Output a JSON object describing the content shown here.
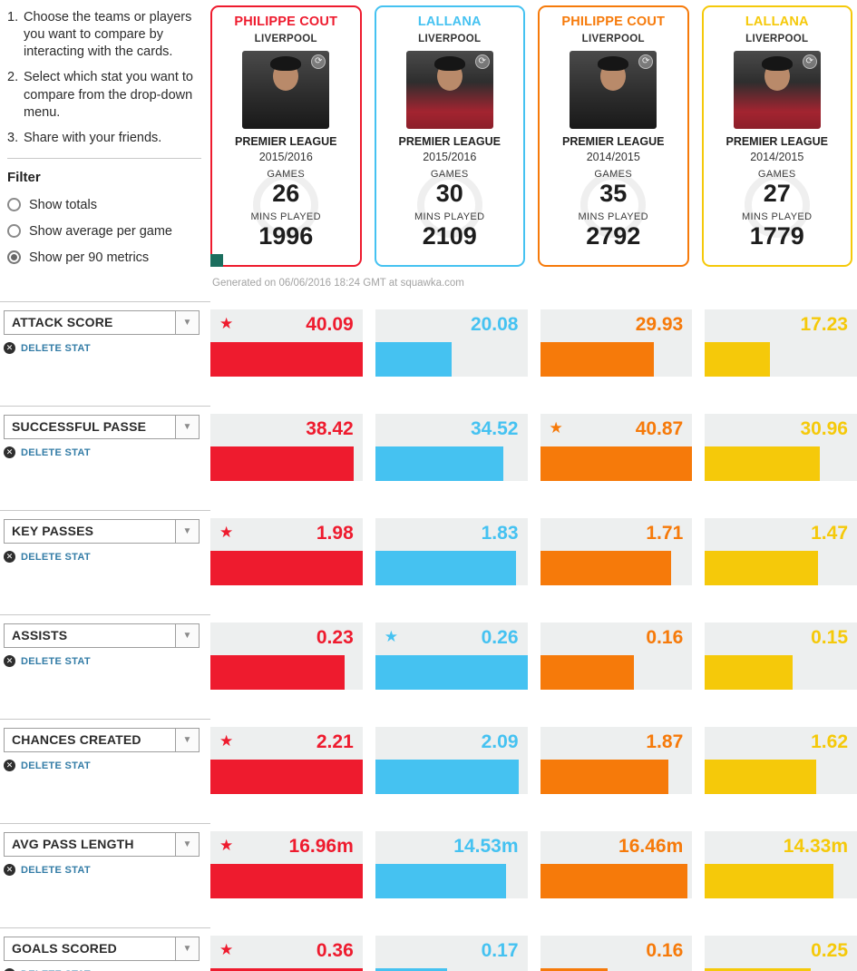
{
  "instructions": [
    {
      "num": "1.",
      "text": "Choose the teams or players you want to compare by interacting with the cards."
    },
    {
      "num": "2.",
      "text": "Select which stat you want to compare from the drop-down menu."
    },
    {
      "num": "3.",
      "text": "Share with your friends."
    }
  ],
  "filter": {
    "title": "Filter",
    "options": [
      {
        "label": "Show totals",
        "selected": false
      },
      {
        "label": "Show average per game",
        "selected": false
      },
      {
        "label": "Show per 90 metrics",
        "selected": true
      }
    ]
  },
  "labels": {
    "games": "GAMES",
    "mins_played": "MINS PLAYED",
    "delete_stat": "DELETE STAT"
  },
  "generated_note": "Generated on 06/06/2016 18:24 GMT at squawka.com",
  "players": [
    {
      "name": "PHILIPPE COUT",
      "team": "LIVERPOOL",
      "league": "PREMIER LEAGUE",
      "season": "2015/2016",
      "games": "26",
      "mins": "1996",
      "color": "#ee1b2e",
      "kit": "dark"
    },
    {
      "name": "LALLANA",
      "team": "LIVERPOOL",
      "league": "PREMIER LEAGUE",
      "season": "2015/2016",
      "games": "30",
      "mins": "2109",
      "color": "#45c2f1",
      "kit": "red"
    },
    {
      "name": "PHILIPPE COUT",
      "team": "LIVERPOOL",
      "league": "PREMIER LEAGUE",
      "season": "2014/2015",
      "games": "35",
      "mins": "2792",
      "color": "#f67a0a",
      "kit": "dark"
    },
    {
      "name": "LALLANA",
      "team": "LIVERPOOL",
      "league": "PREMIER LEAGUE",
      "season": "2014/2015",
      "games": "27",
      "mins": "1779",
      "color": "#f5c90a",
      "kit": "red"
    }
  ],
  "chart_data": {
    "type": "bar",
    "note": "horizontal comparison bars, width proportional to value vs row max",
    "series_names": [
      "PHILIPPE COUT 2015/2016",
      "LALLANA 2015/2016",
      "PHILIPPE COUT 2014/2015",
      "LALLANA 2014/2015"
    ],
    "stats": [
      {
        "name": "ATTACK SCORE",
        "values": [
          {
            "text": "40.09",
            "value": 40.09,
            "best": true
          },
          {
            "text": "20.08",
            "value": 20.08,
            "best": false
          },
          {
            "text": "29.93",
            "value": 29.93,
            "best": false
          },
          {
            "text": "17.23",
            "value": 17.23,
            "best": false
          }
        ]
      },
      {
        "name": "SUCCESSFUL PASSE",
        "values": [
          {
            "text": "38.42",
            "value": 38.42,
            "best": false
          },
          {
            "text": "34.52",
            "value": 34.52,
            "best": false
          },
          {
            "text": "40.87",
            "value": 40.87,
            "best": true
          },
          {
            "text": "30.96",
            "value": 30.96,
            "best": false
          }
        ]
      },
      {
        "name": "KEY PASSES",
        "values": [
          {
            "text": "1.98",
            "value": 1.98,
            "best": true
          },
          {
            "text": "1.83",
            "value": 1.83,
            "best": false
          },
          {
            "text": "1.71",
            "value": 1.71,
            "best": false
          },
          {
            "text": "1.47",
            "value": 1.47,
            "best": false
          }
        ]
      },
      {
        "name": "ASSISTS",
        "values": [
          {
            "text": "0.23",
            "value": 0.23,
            "best": false
          },
          {
            "text": "0.26",
            "value": 0.26,
            "best": true
          },
          {
            "text": "0.16",
            "value": 0.16,
            "best": false
          },
          {
            "text": "0.15",
            "value": 0.15,
            "best": false
          }
        ]
      },
      {
        "name": "CHANCES CREATED",
        "values": [
          {
            "text": "2.21",
            "value": 2.21,
            "best": true
          },
          {
            "text": "2.09",
            "value": 2.09,
            "best": false
          },
          {
            "text": "1.87",
            "value": 1.87,
            "best": false
          },
          {
            "text": "1.62",
            "value": 1.62,
            "best": false
          }
        ]
      },
      {
        "name": "AVG PASS LENGTH",
        "values": [
          {
            "text": "16.96m",
            "value": 16.96,
            "best": true
          },
          {
            "text": "14.53m",
            "value": 14.53,
            "best": false
          },
          {
            "text": "16.46m",
            "value": 16.46,
            "best": false
          },
          {
            "text": "14.33m",
            "value": 14.33,
            "best": false
          }
        ]
      },
      {
        "name": "GOALS SCORED",
        "values": [
          {
            "text": "0.36",
            "value": 0.36,
            "best": true
          },
          {
            "text": "0.17",
            "value": 0.17,
            "best": false
          },
          {
            "text": "0.16",
            "value": 0.16,
            "best": false
          },
          {
            "text": "0.25",
            "value": 0.25,
            "best": false
          }
        ]
      }
    ]
  }
}
